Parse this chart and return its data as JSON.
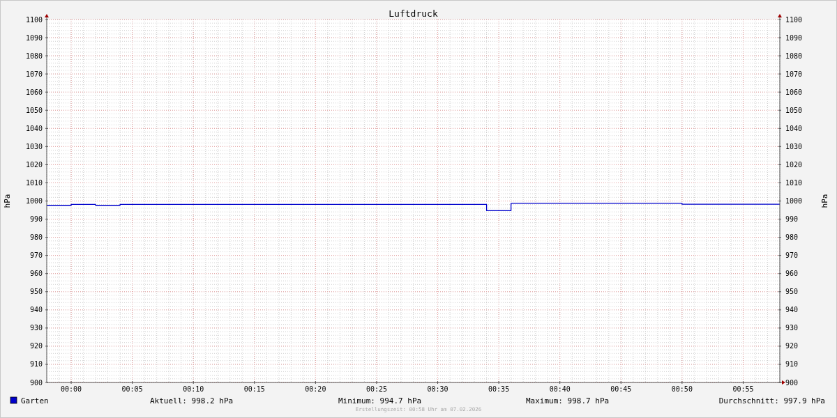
{
  "chart_data": {
    "type": "step",
    "title": "Luftdruck",
    "ylabel": "hPa",
    "y2label": "hPa",
    "x": [
      "2026-02-06T23:58",
      "2026-02-07T00:00",
      "2026-02-07T00:02",
      "2026-02-07T00:04",
      "2026-02-07T00:34",
      "2026-02-07T00:36",
      "2026-02-07T00:50",
      "2026-02-07T00:58"
    ],
    "series": [
      {
        "name": "Garten",
        "color": "#0000cc",
        "values": [
          997.6,
          998.1,
          997.6,
          998.1,
          994.7,
          998.7,
          998.2,
          998.2
        ]
      }
    ],
    "xlim": [
      "2026-02-06T23:58",
      "2026-02-07T00:58"
    ],
    "xticks": [
      {
        "value": "2026-02-07T00:00",
        "label": "00:00"
      },
      {
        "value": "2026-02-07T00:05",
        "label": "00:05"
      },
      {
        "value": "2026-02-07T00:10",
        "label": "00:10"
      },
      {
        "value": "2026-02-07T00:15",
        "label": "00:15"
      },
      {
        "value": "2026-02-07T00:20",
        "label": "00:20"
      },
      {
        "value": "2026-02-07T00:25",
        "label": "00:25"
      },
      {
        "value": "2026-02-07T00:30",
        "label": "00:30"
      },
      {
        "value": "2026-02-07T00:35",
        "label": "00:35"
      },
      {
        "value": "2026-02-07T00:40",
        "label": "00:40"
      },
      {
        "value": "2026-02-07T00:45",
        "label": "00:45"
      },
      {
        "value": "2026-02-07T00:50",
        "label": "00:50"
      },
      {
        "value": "2026-02-07T00:55",
        "label": "00:55"
      }
    ],
    "ylim": [
      900,
      1100
    ],
    "yticks": [
      900,
      910,
      920,
      930,
      940,
      950,
      960,
      970,
      980,
      990,
      1000,
      1010,
      1020,
      1030,
      1040,
      1050,
      1060,
      1070,
      1080,
      1090,
      1100
    ],
    "y2lim": [
      900,
      1100
    ],
    "y2ticks": [
      900,
      910,
      920,
      930,
      940,
      950,
      960,
      970,
      980,
      990,
      1000,
      1010,
      1020,
      1030,
      1040,
      1050,
      1060,
      1070,
      1080,
      1090,
      1100
    ],
    "grid": true,
    "legend": "bottom left",
    "annotations": [
      "Aktuell: 998.2 hPa",
      "Minimum: 994.7 hPa",
      "Maximum: 998.7 hPa",
      "Durchschnitt: 997.9 hPa",
      "Erstellungszeit: 00:58 Uhr am 07.02.2026"
    ]
  }
}
